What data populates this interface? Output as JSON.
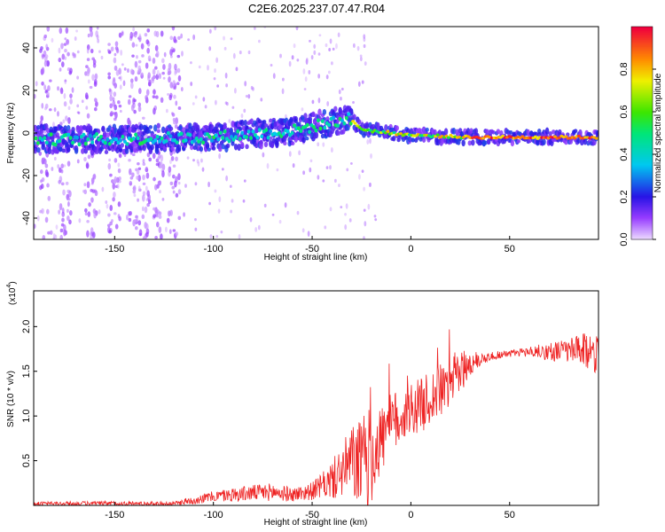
{
  "title": "C2E6.2025.237.07.47.R04",
  "colors": {
    "snr_line": "#ee2222",
    "axis": "#000000",
    "background": "#ffffff"
  },
  "chart_data": [
    {
      "type": "heatmap",
      "name": "spectrogram",
      "xlabel": "Height of straight line (km)",
      "ylabel": "Frequency (Hz)",
      "xlim": [
        -191,
        95
      ],
      "ylim": [
        -50,
        50
      ],
      "x_ticks": [
        -150,
        -100,
        -50,
        0,
        50
      ],
      "y_ticks": [
        40,
        20,
        0,
        -20,
        -40
      ],
      "colorbar": {
        "label": "Normalized spectral amplitude",
        "range": [
          0.0,
          1.0
        ],
        "ticks": [
          0.0,
          0.2,
          0.4,
          0.6,
          0.8
        ],
        "tick_labels": [
          "0.0",
          "0.2",
          "0.4",
          "0.6",
          "0.8"
        ]
      },
      "ridge": {
        "description_points_x": [
          -191,
          -150,
          -100,
          -60,
          -40,
          -32,
          -25,
          -20,
          -10,
          0,
          30,
          60,
          95
        ],
        "center_freq_hz": [
          -3,
          -3,
          -2,
          1,
          5,
          7,
          2,
          1,
          0,
          -1,
          -2,
          -2,
          -2
        ]
      }
    },
    {
      "type": "line",
      "name": "snr",
      "xlabel": "Height of straight line (km)",
      "ylabel": "SNR (10 * v/v)",
      "y_multiplier_label": "(x10",
      "y_multiplier_exp": "4",
      "y_multiplier_close": ")",
      "xlim": [
        -191,
        95
      ],
      "ylim": [
        0,
        2.4
      ],
      "x_ticks": [
        -150,
        -100,
        -50,
        0,
        50
      ],
      "y_ticks": [
        2.0,
        1.5,
        1.0,
        0.5
      ],
      "y_tick_labels": [
        "2.0",
        "1.5",
        "1.0",
        "0.5"
      ],
      "series": [
        {
          "name": "SNR",
          "envelope_x": [
            -191,
            -150,
            -120,
            -110,
            -100,
            -90,
            -80,
            -70,
            -60,
            -50,
            -45,
            -40,
            -35,
            -30,
            -25,
            -20,
            -15,
            -10,
            -5,
            0,
            5,
            10,
            15,
            20,
            25,
            30,
            35,
            40,
            50,
            60,
            70,
            80,
            90,
            95
          ],
          "envelope_mean": [
            0.02,
            0.02,
            0.02,
            0.06,
            0.1,
            0.12,
            0.14,
            0.15,
            0.12,
            0.16,
            0.22,
            0.28,
            0.38,
            0.5,
            0.45,
            0.55,
            0.75,
            0.9,
            1.0,
            1.08,
            1.12,
            1.2,
            1.28,
            1.38,
            1.5,
            1.58,
            1.63,
            1.67,
            1.7,
            1.72,
            1.72,
            1.73,
            1.72,
            1.72
          ],
          "envelope_amp": [
            0.02,
            0.03,
            0.02,
            0.05,
            0.06,
            0.08,
            0.09,
            0.1,
            0.08,
            0.1,
            0.14,
            0.22,
            0.3,
            0.4,
            0.55,
            0.55,
            0.4,
            0.35,
            0.35,
            0.3,
            0.3,
            0.32,
            0.3,
            0.3,
            0.25,
            0.15,
            0.08,
            0.05,
            0.04,
            0.06,
            0.1,
            0.14,
            0.22,
            0.24
          ]
        }
      ]
    }
  ]
}
